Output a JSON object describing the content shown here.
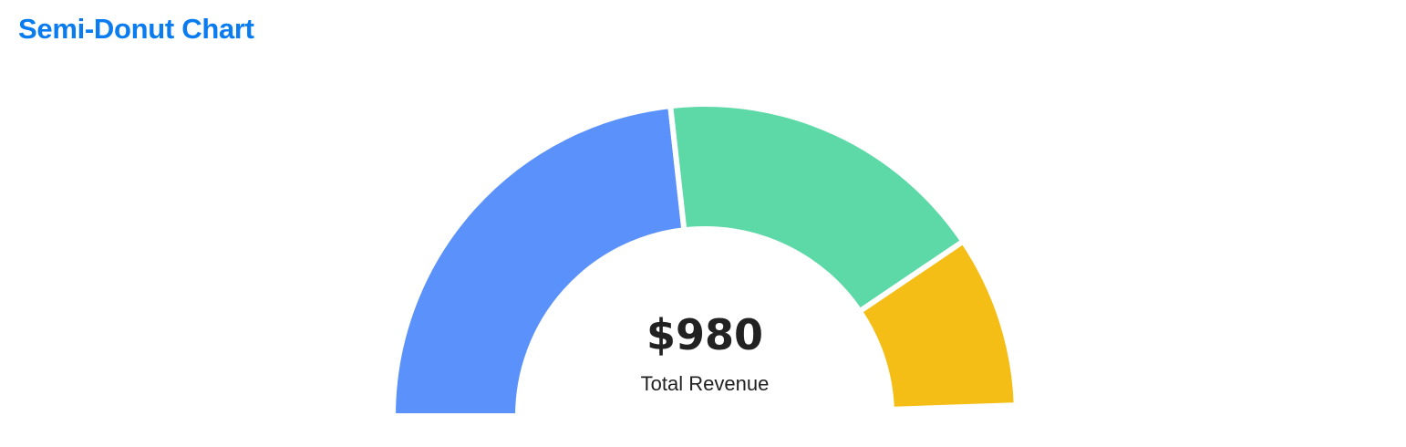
{
  "page": {
    "title": "Semi-Donut Chart"
  },
  "chart_data": {
    "type": "pie",
    "variant": "semi-donut",
    "start_angle_deg": -90,
    "end_angle_deg": 88,
    "categories": [
      "",
      "",
      ""
    ],
    "values": [
      47,
      35,
      18
    ],
    "colors": [
      "#5b91fa",
      "#5cd9a7",
      "#f5be17"
    ],
    "center_value": "$980",
    "center_label": "Total Revenue",
    "legend": "none"
  }
}
